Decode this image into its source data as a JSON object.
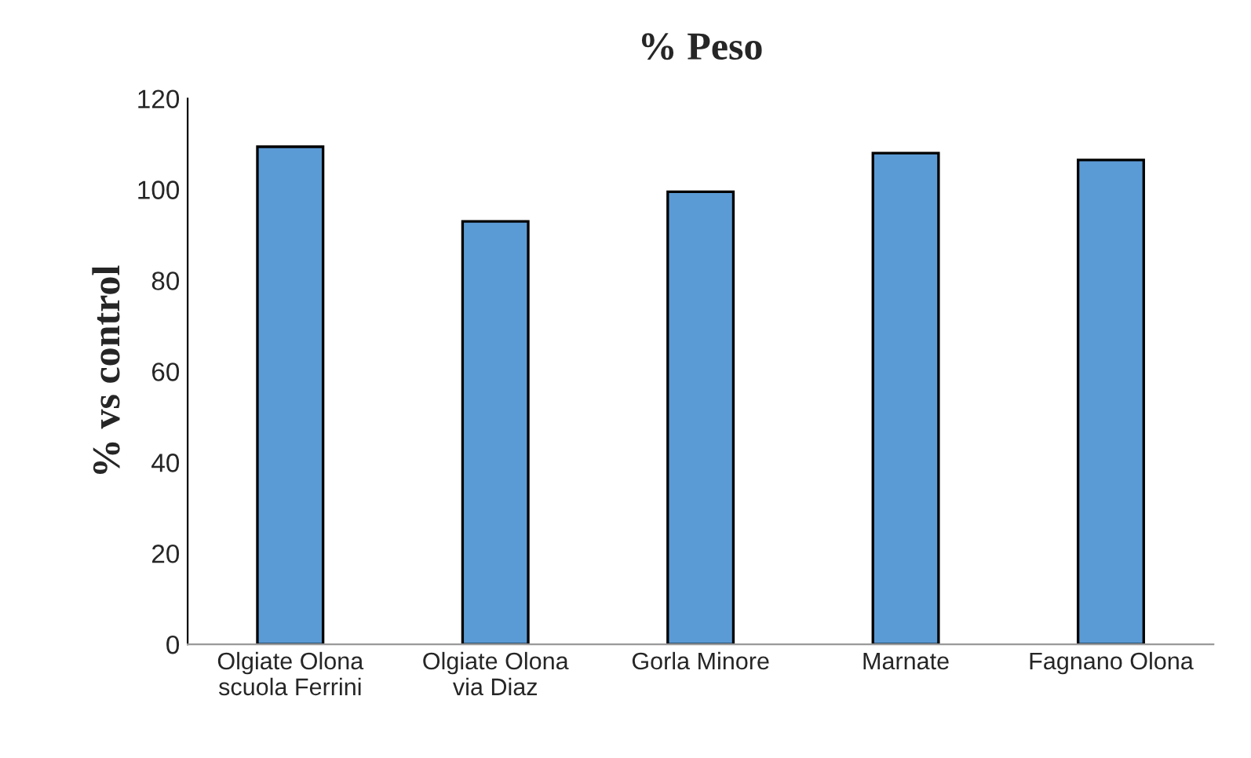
{
  "chart_data": {
    "type": "bar",
    "title": "% Peso",
    "ylabel": "% vs control",
    "categories": [
      "Olgiate Olona\nscuola Ferrini",
      "Olgiate Olona\nvia Diaz",
      "Gorla Minore",
      "Marnate",
      "Fagnano Olona"
    ],
    "values": [
      109.4,
      93,
      99.5,
      108,
      106.5
    ],
    "color": "#5b9bd5",
    "ylim": [
      0,
      120
    ],
    "yticks": [
      0,
      20,
      40,
      60,
      80,
      100,
      120
    ],
    "grid": false
  }
}
